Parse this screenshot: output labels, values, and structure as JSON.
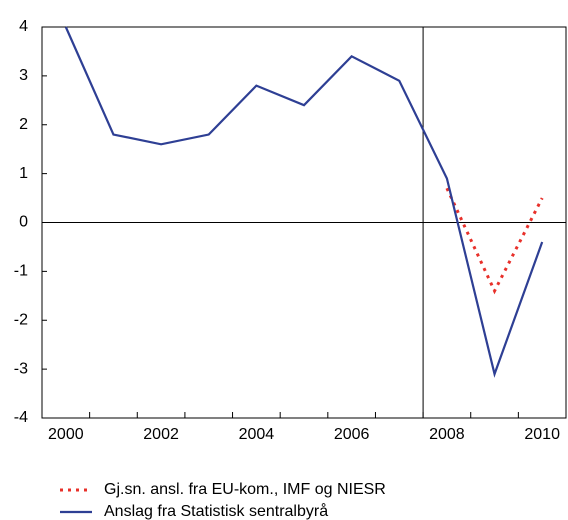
{
  "chart_data": {
    "type": "line",
    "x": [
      2000,
      2001,
      2002,
      2003,
      2004,
      2005,
      2006,
      2007,
      2008,
      2009,
      2010
    ],
    "series": [
      {
        "name": "Gj.sn. ansl. fra EU-kom., IMF og NIESR",
        "color": "#e8302a",
        "dash": true,
        "values": [
          null,
          null,
          null,
          null,
          null,
          null,
          null,
          null,
          0.7,
          -1.4,
          0.5
        ]
      },
      {
        "name": "Anslag fra Statistisk sentralbyrå",
        "color": "#2e3f94",
        "dash": false,
        "values": [
          4,
          1.8,
          1.6,
          1.8,
          2.8,
          2.4,
          3.4,
          2.9,
          0.9,
          -3.1,
          -0.4
        ]
      }
    ],
    "xlim": [
      1999.5,
      2010.5
    ],
    "xticks": [
      2000,
      2002,
      2004,
      2006,
      2008,
      2010
    ],
    "ylim": [
      -4,
      4
    ],
    "yticks": [
      -4,
      -3,
      -2,
      -1,
      0,
      1,
      2,
      3,
      4
    ],
    "vline": 2007.5,
    "legend": "bottom"
  }
}
